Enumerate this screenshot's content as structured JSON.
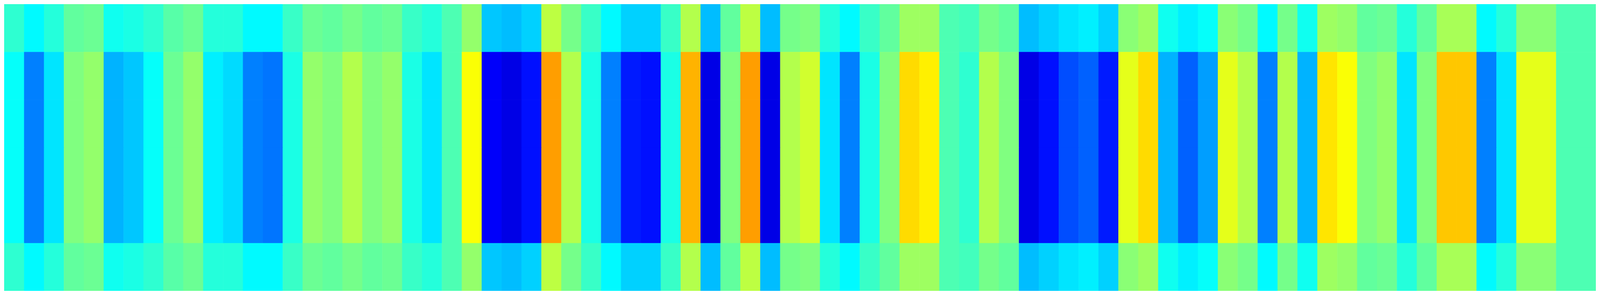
{
  "chart_data": {
    "type": "heatmap",
    "tick_labels": false,
    "color_range": [
      0,
      1
    ],
    "cells": [
      [
        0.42,
        0.37,
        0.41,
        0.47,
        0.48,
        0.39,
        0.4,
        0.42,
        0.46,
        0.48,
        0.41,
        0.41,
        0.37,
        0.37,
        0.43,
        0.48,
        0.47,
        0.49,
        0.47,
        0.48,
        0.43,
        0.41,
        0.45,
        0.52,
        0.32,
        0.31,
        0.33,
        0.56,
        0.49,
        0.43,
        0.37,
        0.33,
        0.33,
        0.43,
        0.55,
        0.31,
        0.47,
        0.56,
        0.31,
        0.49,
        0.5,
        0.41,
        0.37,
        0.43,
        0.47,
        0.53,
        0.53,
        0.45,
        0.44,
        0.49,
        0.47,
        0.31,
        0.33,
        0.35,
        0.36,
        0.33,
        0.51,
        0.53,
        0.39,
        0.36,
        0.38,
        0.51,
        0.49,
        0.37,
        0.49,
        0.39,
        0.53,
        0.52,
        0.47,
        0.48,
        0.41,
        0.47,
        0.54,
        0.54,
        0.37,
        0.41,
        0.51,
        0.51,
        0.45,
        0.45
      ],
      [
        0.38,
        0.25,
        0.35,
        0.5,
        0.52,
        0.3,
        0.32,
        0.38,
        0.48,
        0.52,
        0.36,
        0.34,
        0.25,
        0.24,
        0.4,
        0.52,
        0.5,
        0.55,
        0.5,
        0.52,
        0.4,
        0.35,
        0.45,
        0.62,
        0.12,
        0.1,
        0.14,
        0.72,
        0.55,
        0.4,
        0.25,
        0.15,
        0.14,
        0.4,
        0.7,
        0.1,
        0.5,
        0.72,
        0.1,
        0.55,
        0.58,
        0.35,
        0.25,
        0.4,
        0.5,
        0.66,
        0.64,
        0.45,
        0.42,
        0.55,
        0.5,
        0.1,
        0.14,
        0.2,
        0.22,
        0.15,
        0.6,
        0.66,
        0.3,
        0.22,
        0.28,
        0.6,
        0.55,
        0.25,
        0.55,
        0.3,
        0.65,
        0.62,
        0.5,
        0.52,
        0.35,
        0.5,
        0.68,
        0.68,
        0.25,
        0.35,
        0.6,
        0.6,
        0.45,
        0.45
      ],
      [
        0.38,
        0.25,
        0.35,
        0.5,
        0.52,
        0.3,
        0.32,
        0.38,
        0.48,
        0.52,
        0.36,
        0.34,
        0.25,
        0.24,
        0.4,
        0.52,
        0.5,
        0.55,
        0.5,
        0.52,
        0.4,
        0.35,
        0.45,
        0.62,
        0.12,
        0.1,
        0.14,
        0.72,
        0.55,
        0.4,
        0.25,
        0.15,
        0.14,
        0.4,
        0.7,
        0.1,
        0.5,
        0.72,
        0.1,
        0.55,
        0.58,
        0.35,
        0.25,
        0.4,
        0.5,
        0.66,
        0.64,
        0.45,
        0.42,
        0.55,
        0.5,
        0.1,
        0.14,
        0.2,
        0.22,
        0.15,
        0.6,
        0.66,
        0.3,
        0.22,
        0.28,
        0.6,
        0.55,
        0.25,
        0.55,
        0.3,
        0.65,
        0.62,
        0.5,
        0.52,
        0.35,
        0.5,
        0.68,
        0.68,
        0.25,
        0.35,
        0.6,
        0.6,
        0.45,
        0.45
      ],
      [
        0.38,
        0.25,
        0.35,
        0.5,
        0.52,
        0.3,
        0.32,
        0.38,
        0.48,
        0.52,
        0.36,
        0.34,
        0.25,
        0.24,
        0.4,
        0.52,
        0.5,
        0.55,
        0.5,
        0.52,
        0.4,
        0.35,
        0.45,
        0.62,
        0.12,
        0.1,
        0.14,
        0.72,
        0.55,
        0.4,
        0.25,
        0.15,
        0.14,
        0.4,
        0.7,
        0.1,
        0.5,
        0.72,
        0.1,
        0.55,
        0.58,
        0.35,
        0.25,
        0.4,
        0.5,
        0.66,
        0.64,
        0.45,
        0.42,
        0.55,
        0.5,
        0.1,
        0.14,
        0.2,
        0.22,
        0.15,
        0.6,
        0.66,
        0.3,
        0.22,
        0.28,
        0.6,
        0.55,
        0.25,
        0.55,
        0.3,
        0.65,
        0.62,
        0.5,
        0.52,
        0.35,
        0.5,
        0.68,
        0.68,
        0.25,
        0.35,
        0.6,
        0.6,
        0.45,
        0.45
      ],
      [
        0.38,
        0.25,
        0.35,
        0.5,
        0.52,
        0.3,
        0.32,
        0.38,
        0.48,
        0.52,
        0.36,
        0.34,
        0.25,
        0.24,
        0.4,
        0.52,
        0.5,
        0.55,
        0.5,
        0.52,
        0.4,
        0.35,
        0.45,
        0.62,
        0.12,
        0.1,
        0.14,
        0.72,
        0.55,
        0.4,
        0.25,
        0.15,
        0.14,
        0.4,
        0.7,
        0.1,
        0.5,
        0.72,
        0.1,
        0.55,
        0.58,
        0.35,
        0.25,
        0.4,
        0.5,
        0.66,
        0.64,
        0.45,
        0.42,
        0.55,
        0.5,
        0.1,
        0.14,
        0.2,
        0.22,
        0.15,
        0.6,
        0.66,
        0.3,
        0.22,
        0.28,
        0.6,
        0.55,
        0.25,
        0.55,
        0.3,
        0.65,
        0.62,
        0.5,
        0.52,
        0.35,
        0.5,
        0.68,
        0.68,
        0.25,
        0.35,
        0.6,
        0.6,
        0.45,
        0.45
      ],
      [
        0.42,
        0.37,
        0.41,
        0.47,
        0.48,
        0.39,
        0.4,
        0.42,
        0.46,
        0.48,
        0.41,
        0.41,
        0.37,
        0.37,
        0.43,
        0.48,
        0.47,
        0.49,
        0.47,
        0.48,
        0.43,
        0.41,
        0.45,
        0.52,
        0.32,
        0.31,
        0.33,
        0.56,
        0.49,
        0.43,
        0.37,
        0.33,
        0.33,
        0.43,
        0.55,
        0.31,
        0.47,
        0.56,
        0.31,
        0.49,
        0.5,
        0.41,
        0.37,
        0.43,
        0.47,
        0.53,
        0.53,
        0.45,
        0.44,
        0.49,
        0.47,
        0.31,
        0.33,
        0.35,
        0.36,
        0.33,
        0.51,
        0.53,
        0.39,
        0.36,
        0.38,
        0.51,
        0.49,
        0.37,
        0.49,
        0.39,
        0.53,
        0.52,
        0.47,
        0.48,
        0.41,
        0.47,
        0.54,
        0.54,
        0.37,
        0.41,
        0.51,
        0.51,
        0.45,
        0.45
      ]
    ]
  }
}
